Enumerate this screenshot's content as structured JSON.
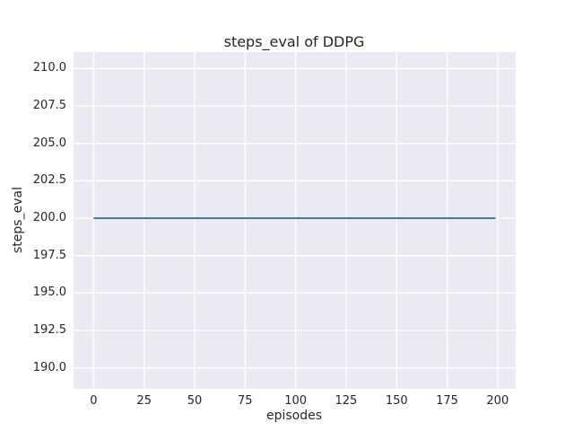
{
  "chart_data": {
    "type": "line",
    "title": "steps_eval of DDPG",
    "xlabel": "episodes",
    "ylabel": "steps_eval",
    "x_tick_values": [
      0,
      25,
      50,
      75,
      100,
      125,
      150,
      175,
      200
    ],
    "x_tick_labels": [
      "0",
      "25",
      "50",
      "75",
      "100",
      "125",
      "150",
      "175",
      "200"
    ],
    "y_tick_values": [
      190.0,
      192.5,
      195.0,
      197.5,
      200.0,
      202.5,
      205.0,
      207.5,
      210.0
    ],
    "y_tick_labels": [
      "190.0",
      "192.5",
      "195.0",
      "197.5",
      "200.0",
      "202.5",
      "205.0",
      "207.5",
      "210.0"
    ],
    "xlim": [
      -9.95,
      208.95
    ],
    "ylim": [
      188.6,
      211.1
    ],
    "grid": true,
    "legend_position": "none",
    "series": [
      {
        "name": "DDPG",
        "color": "#4C72B0",
        "x": [
          0,
          199
        ],
        "y": [
          200.0,
          200.0
        ],
        "note": "constant line at steps_eval = 200.0 across episodes 0 to 199"
      }
    ],
    "colors": {
      "plot_background": "#EAEAF2",
      "grid_line": "#FFFFFF",
      "text": "#262626",
      "figure_background": "#FFFFFF"
    }
  }
}
